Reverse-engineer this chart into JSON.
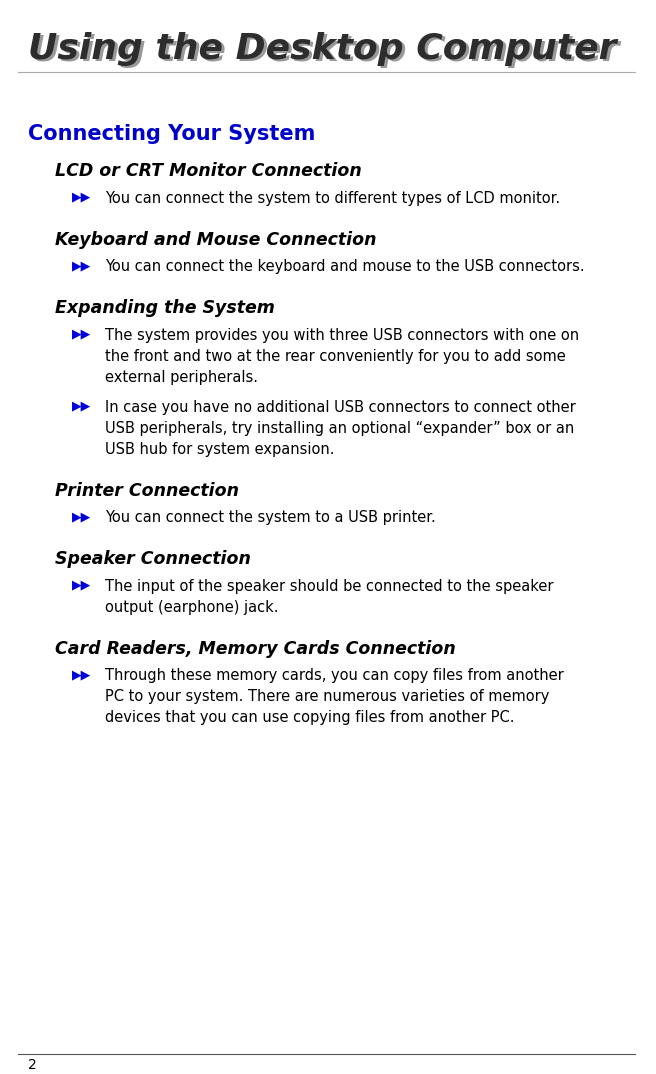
{
  "title": "Using the Desktop Computer",
  "title_color": "#2d2d2d",
  "title_shadow_color": "#999999",
  "section_heading": "Connecting Your System",
  "section_heading_color": "#0000cc",
  "background_color": "#ffffff",
  "page_number": "2",
  "subsections": [
    {
      "heading": "LCD or CRT Monitor Connection",
      "bullets": [
        "You can connect the system to different types of LCD monitor."
      ]
    },
    {
      "heading": "Keyboard and Mouse Connection",
      "bullets": [
        "You can connect the keyboard and mouse to the USB connectors."
      ]
    },
    {
      "heading": "Expanding the System",
      "bullets": [
        "The system provides you with three USB connectors with one on\nthe front and two at the rear conveniently for you to add some\nexternal peripherals.",
        "In case you have no additional USB connectors to connect other\nUSB peripherals, try installing an optional “expander” box or an\nUSB hub for system expansion."
      ]
    },
    {
      "heading": "Printer Connection",
      "bullets": [
        "You can connect the system to a USB printer."
      ]
    },
    {
      "heading": "Speaker Connection",
      "bullets": [
        "The input of the speaker should be connected to the speaker\noutput (earphone) jack."
      ]
    },
    {
      "heading": "Card Readers, Memory Cards Connection",
      "bullets": [
        "Through these memory cards, you can copy files from another\nPC to your system. There are numerous varieties of memory\ndevices that you can use copying files from another PC."
      ]
    }
  ],
  "heading_color": "#000000",
  "bullet_color": "#0000dd",
  "text_color": "#000000",
  "title_fontsize": 26,
  "section_fontsize": 15,
  "sub_heading_fontsize": 12.5,
  "body_fontsize": 10.5,
  "page_num_fontsize": 10
}
